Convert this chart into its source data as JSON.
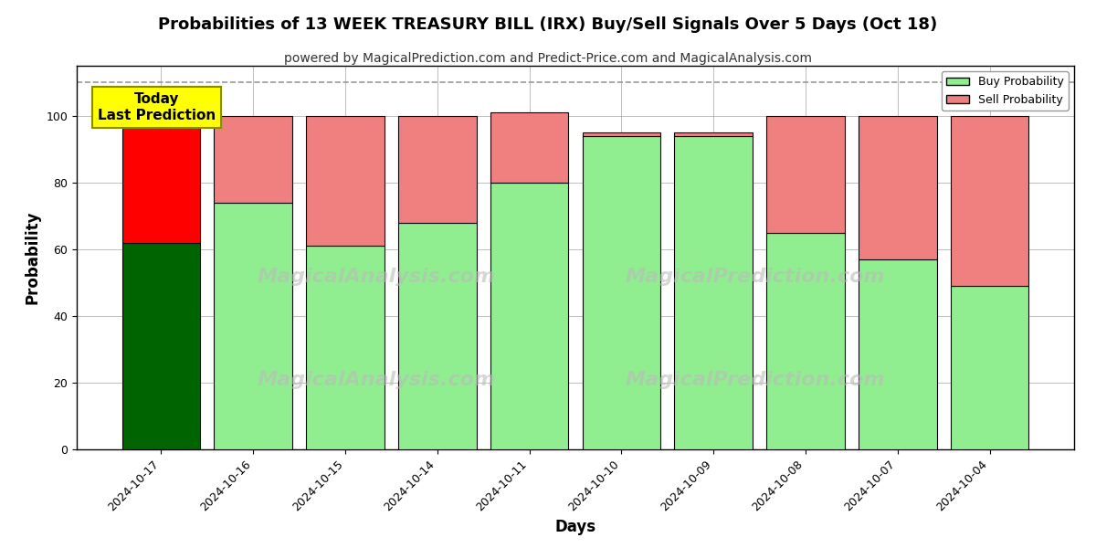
{
  "title": "Probabilities of 13 WEEK TREASURY BILL (IRX) Buy/Sell Signals Over 5 Days (Oct 18)",
  "subtitle": "powered by MagicalPrediction.com and Predict-Price.com and MagicalAnalysis.com",
  "xlabel": "Days",
  "ylabel": "Probability",
  "dates": [
    "2024-10-17",
    "2024-10-16",
    "2024-10-15",
    "2024-10-14",
    "2024-10-11",
    "2024-10-10",
    "2024-10-09",
    "2024-10-08",
    "2024-10-07",
    "2024-10-04"
  ],
  "buy_probs": [
    62,
    74,
    61,
    68,
    80,
    94,
    94,
    65,
    57,
    49
  ],
  "sell_probs": [
    38,
    26,
    39,
    32,
    21,
    1,
    1,
    35,
    43,
    51
  ],
  "today_buy_color": "#006400",
  "today_sell_color": "#FF0000",
  "buy_color": "#90EE90",
  "sell_color": "#F08080",
  "today_index": 0,
  "annotation_text": "Today\nLast Prediction",
  "annotation_bg": "#FFFF00",
  "dashed_line_y": 110,
  "ylim": [
    0,
    115
  ],
  "yticks": [
    0,
    20,
    40,
    60,
    80,
    100
  ],
  "legend_buy_label": "Buy Probability",
  "legend_sell_label": "Sell Probability",
  "bar_width": 0.85,
  "edge_color": "#000000",
  "grid_color": "#808080",
  "background_color": "#ffffff",
  "watermark_left": "MagicalAnalysis.com",
  "watermark_right": "MagicalPrediction.com",
  "title_fontsize": 13,
  "subtitle_fontsize": 10,
  "axis_label_fontsize": 12,
  "tick_fontsize": 9
}
